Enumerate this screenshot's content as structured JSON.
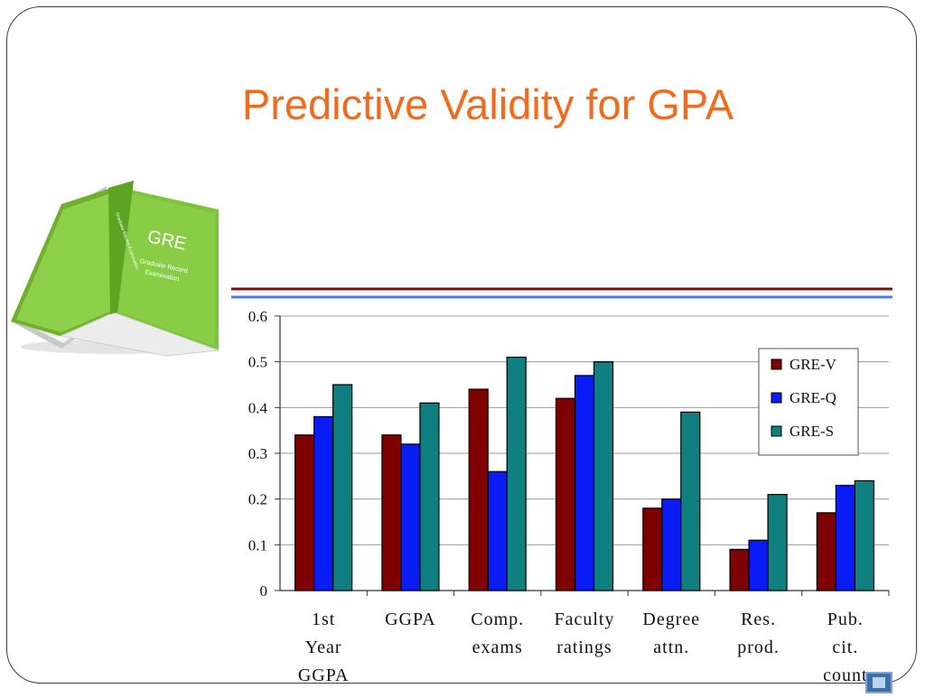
{
  "slide": {
    "title": "Predictive Validity for GPA"
  },
  "book": {
    "title": "GRE",
    "subtitle_line1": "Graduate Record",
    "subtitle_line2": "Examination",
    "spine_text": "Graduate Record Examination"
  },
  "colors": {
    "title": "#f26b1d",
    "rule_top": "#7a0f0f",
    "rule_bottom": "#4b7bf0",
    "gre_v": "#7f0000",
    "gre_q": "#0a1cf5",
    "gre_s": "#0f7f7f",
    "book_green": "#7cc43a"
  },
  "chart_data": {
    "type": "bar",
    "categories": [
      [
        "1st",
        "Year",
        "GGPA"
      ],
      [
        "GGPA"
      ],
      [
        "Comp.",
        "exams"
      ],
      [
        "Faculty",
        "ratings"
      ],
      [
        "Degree",
        "attn."
      ],
      [
        "Res.",
        "prod."
      ],
      [
        "Pub.",
        "cit.",
        "count"
      ]
    ],
    "series": [
      {
        "name": "GRE-V",
        "color": "#7f0000",
        "values": [
          0.34,
          0.34,
          0.44,
          0.42,
          0.18,
          0.09,
          0.17
        ]
      },
      {
        "name": "GRE-Q",
        "color": "#0a1cf5",
        "values": [
          0.38,
          0.32,
          0.26,
          0.47,
          0.2,
          0.11,
          0.23
        ]
      },
      {
        "name": "GRE-S",
        "color": "#0f7f7f",
        "values": [
          0.45,
          0.41,
          0.51,
          0.5,
          0.39,
          0.21,
          0.24
        ]
      }
    ],
    "ylim": [
      0,
      0.6
    ],
    "yticks": [
      "0",
      "0.1",
      "0.2",
      "0.3",
      "0.4",
      "0.5",
      "0.6"
    ],
    "grid": true,
    "legend": "right"
  }
}
